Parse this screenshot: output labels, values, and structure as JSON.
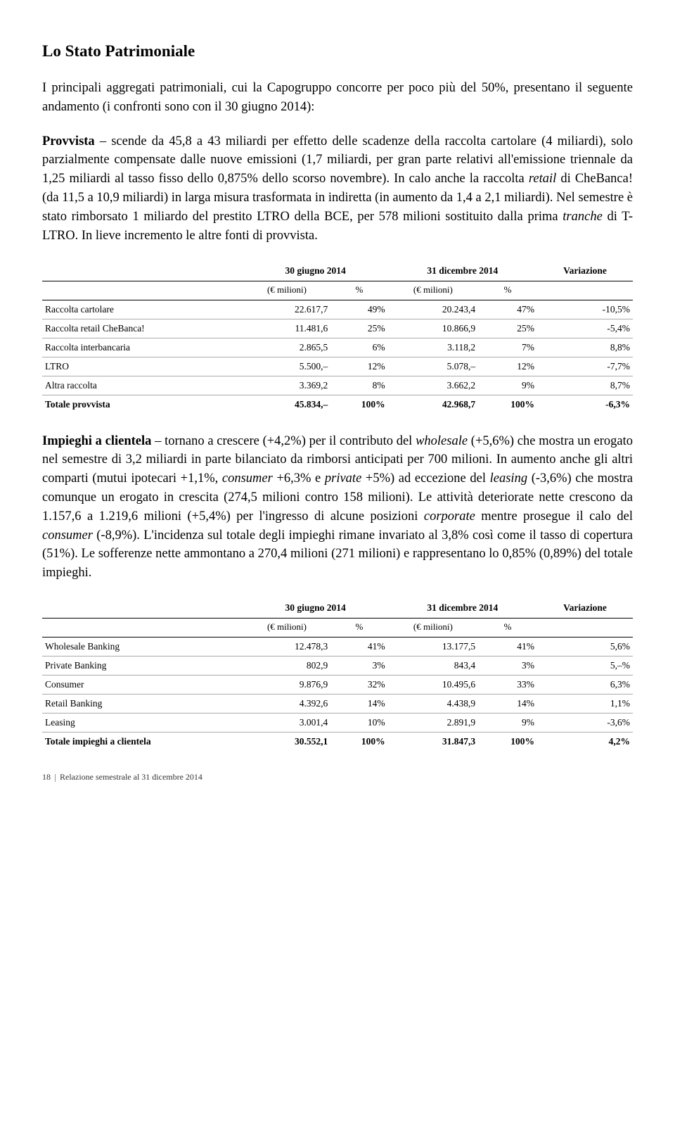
{
  "title": "Lo Stato Patrimoniale",
  "para1_open": "I principali aggregati patrimoniali, cui la Capogruppo concorre per poco più del 50%, presentano il seguente andamento (i confronti sono con il 30 giugno 2014):",
  "para2_label": "Provvista",
  "para2_body_a": " – scende da 45,8 a 43 miliardi per effetto delle scadenze della raccolta cartolare (4 miliardi), solo parzialmente compensate dalle nuove emissioni (1,7 miliardi, per gran parte relativi all'emissione triennale da 1,25 miliardi al tasso fisso dello 0,875% dello scorso novembre). In calo anche la raccolta ",
  "para2_retail": "retail",
  "para2_body_b": " di CheBanca! (da 11,5 a 10,9 miliardi) in larga misura trasformata in indiretta (in aumento da 1,4 a 2,1 miliardi). Nel semestre è stato rimborsato 1 miliardo del prestito LTRO della BCE, per 578 milioni sostituito dalla prima ",
  "para2_tranche": "tranche",
  "para2_body_c": " di T-LTRO. In lieve incremento le altre fonti di provvista.",
  "tbl1": {
    "h_date1": "30 giugno 2014",
    "h_date2": "31 dicembre 2014",
    "h_var": "Variazione",
    "h_eur": "(€ milioni)",
    "h_pct": "%",
    "rows": [
      {
        "l": "Raccolta cartolare",
        "a": "22.617,7",
        "ap": "49%",
        "b": "20.243,4",
        "bp": "47%",
        "v": "-10,5%"
      },
      {
        "l": "Raccolta retail CheBanca!",
        "a": "11.481,6",
        "ap": "25%",
        "b": "10.866,9",
        "bp": "25%",
        "v": "-5,4%"
      },
      {
        "l": "Raccolta interbancaria",
        "a": "2.865,5",
        "ap": "6%",
        "b": "3.118,2",
        "bp": "7%",
        "v": "8,8%"
      },
      {
        "l": "LTRO",
        "a": "5.500,–",
        "ap": "12%",
        "b": "5.078,–",
        "bp": "12%",
        "v": "-7,7%"
      },
      {
        "l": "Altra raccolta",
        "a": "3.369,2",
        "ap": "8%",
        "b": "3.662,2",
        "bp": "9%",
        "v": "8,7%"
      }
    ],
    "total": {
      "l": "Totale provvista",
      "a": "45.834,–",
      "ap": "100%",
      "b": "42.968,7",
      "bp": "100%",
      "v": "-6,3%"
    }
  },
  "para3_label": "Impieghi a clientela",
  "para3_a": " – tornano a crescere (+4,2%) per il contributo del ",
  "para3_wholesale": "wholesale",
  "para3_b": " (+5,6%) che mostra un erogato nel semestre di 3,2 miliardi in parte bilanciato da rimborsi anticipati per 700 milioni. In aumento anche gli altri comparti (mutui ipotecari +1,1%, ",
  "para3_consumer1": "consumer",
  "para3_c": " +6,3% e ",
  "para3_private": "private",
  "para3_d": " +5%) ad eccezione del ",
  "para3_leasing": "leasing",
  "para3_e": " (-3,6%) che mostra comunque un erogato in crescita (274,5 milioni contro 158 milioni). Le attività deteriorate nette crescono da 1.157,6 a 1.219,6 milioni (+5,4%) per l'ingresso di alcune posizioni ",
  "para3_corporate": "corporate",
  "para3_f": " mentre prosegue il calo del ",
  "para3_consumer2": "consumer",
  "para3_g": " (-8,9%). L'incidenza sul totale degli impieghi rimane invariato al 3,8% così come il tasso di copertura (51%). Le sofferenze nette ammontano a 270,4 milioni (271 milioni) e rappresentano lo 0,85% (0,89%) del totale impieghi.",
  "tbl2": {
    "rows": [
      {
        "l": "Wholesale Banking",
        "a": "12.478,3",
        "ap": "41%",
        "b": "13.177,5",
        "bp": "41%",
        "v": "5,6%"
      },
      {
        "l": "Private Banking",
        "a": "802,9",
        "ap": "3%",
        "b": "843,4",
        "bp": "3%",
        "v": "5,–%"
      },
      {
        "l": "Consumer",
        "a": "9.876,9",
        "ap": "32%",
        "b": "10.495,6",
        "bp": "33%",
        "v": "6,3%"
      },
      {
        "l": "Retail Banking",
        "a": "4.392,6",
        "ap": "14%",
        "b": "4.438,9",
        "bp": "14%",
        "v": "1,1%"
      },
      {
        "l": "Leasing",
        "a": "3.001,4",
        "ap": "10%",
        "b": "2.891,9",
        "bp": "9%",
        "v": "-3,6%"
      }
    ],
    "total": {
      "l": "Totale impieghi a clientela",
      "a": "30.552,1",
      "ap": "100%",
      "b": "31.847,3",
      "bp": "100%",
      "v": "4,2%"
    }
  },
  "footer_page": "18",
  "footer_text": "Relazione semestrale al 31 dicembre 2014"
}
